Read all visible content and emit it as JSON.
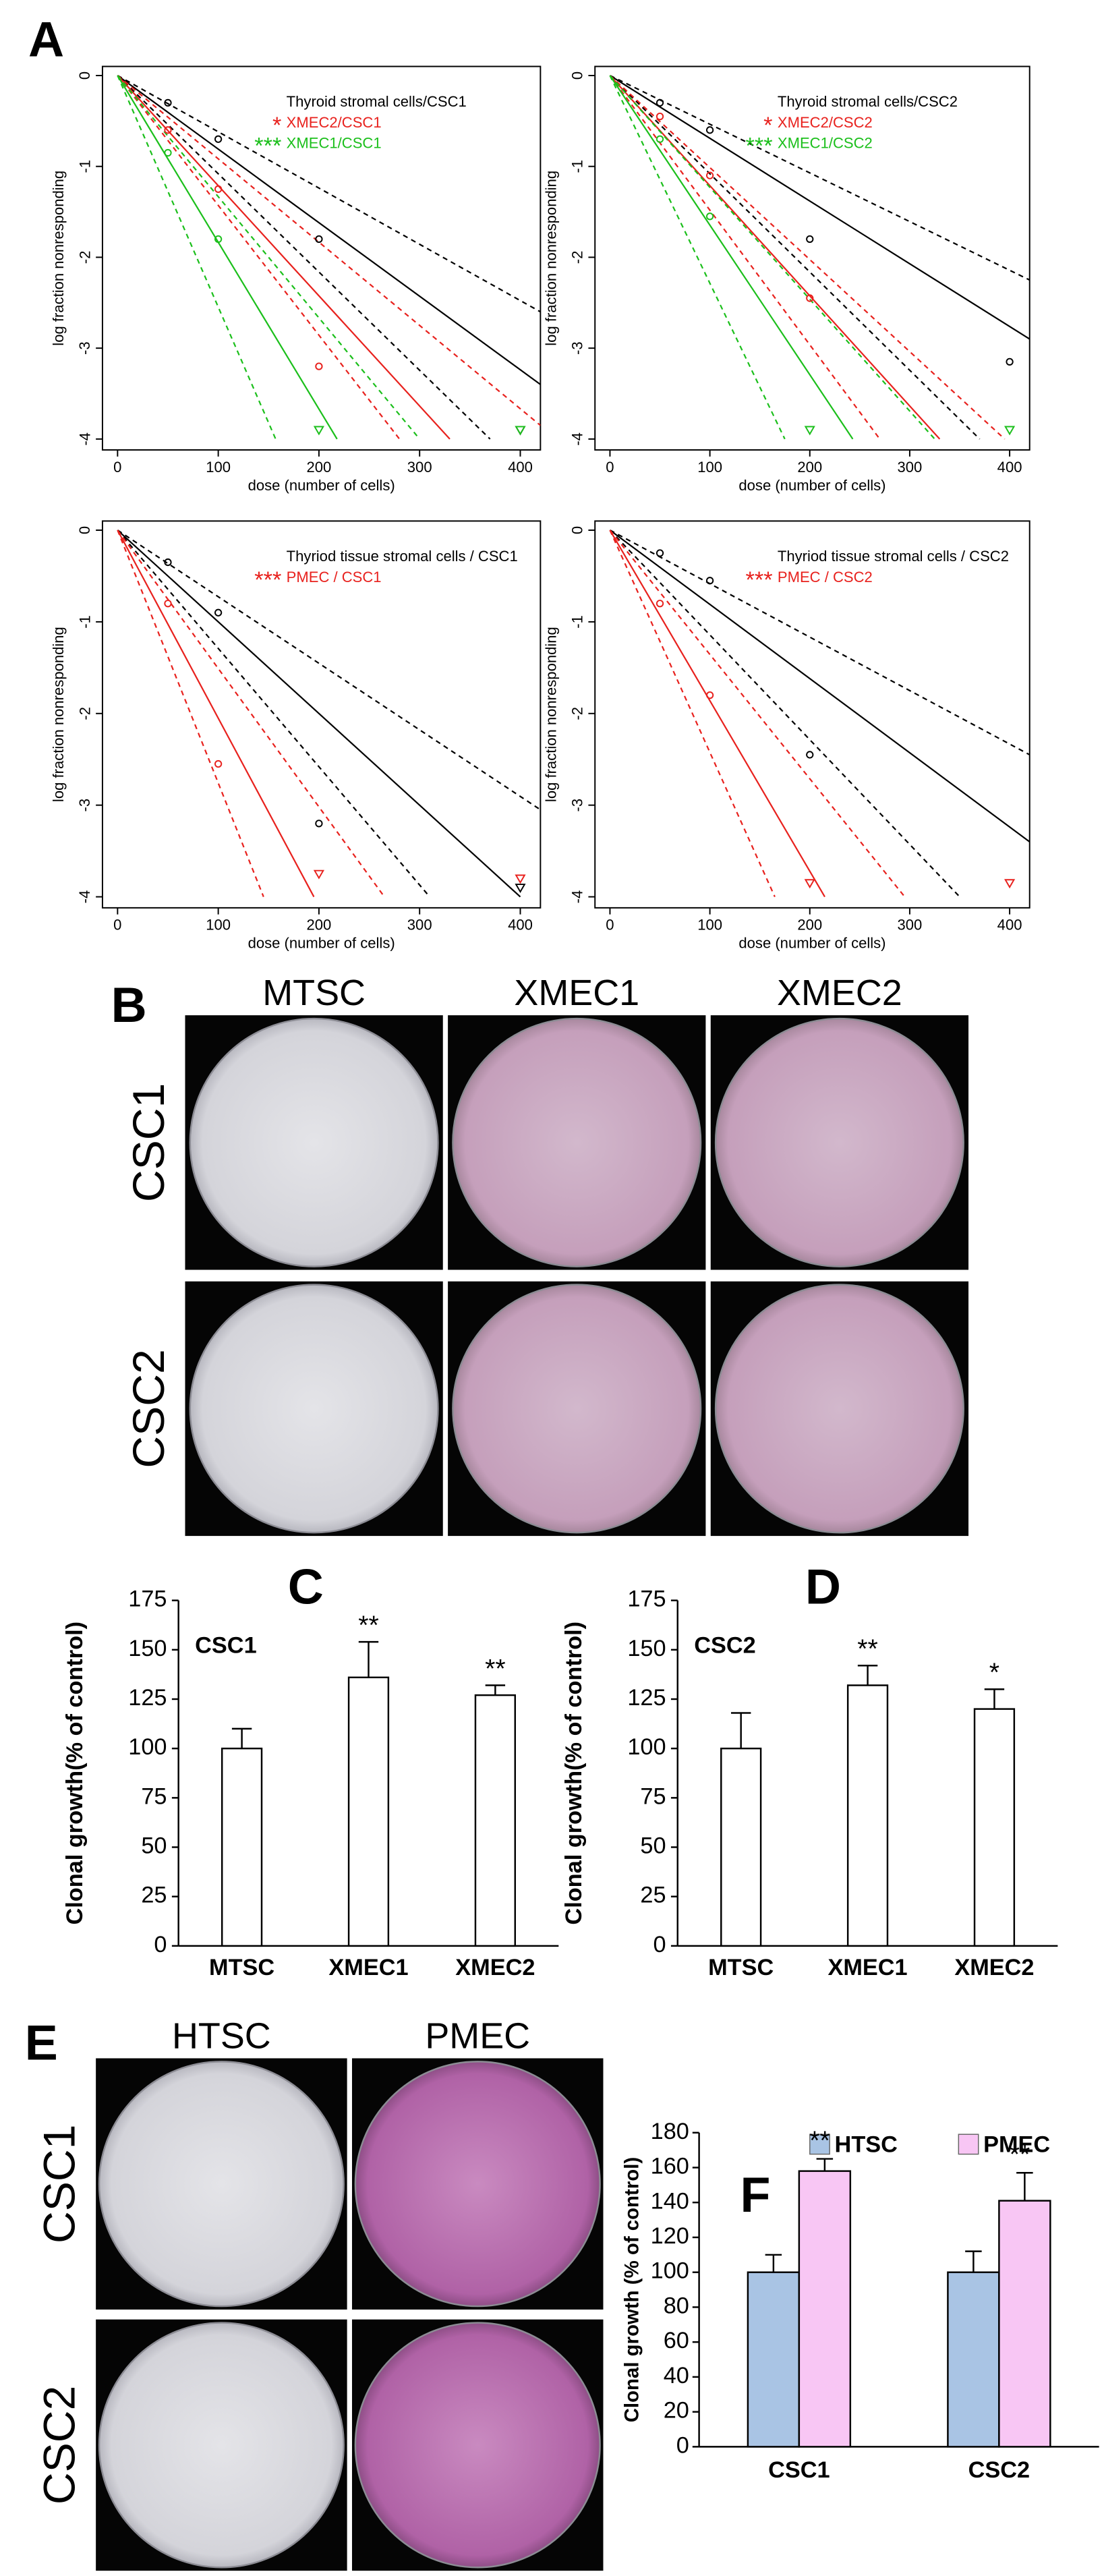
{
  "panel_labels": [
    "A",
    "B",
    "C",
    "D",
    "E",
    "F"
  ],
  "images": [
    {
      "columns": [
        "MTSC",
        "XMEC1",
        "XMEC2"
      ],
      "rows": [
        "CSC1",
        "CSC2"
      ]
    },
    {
      "columns": [
        "HTSC",
        "PMEC"
      ],
      "rows": [
        "CSC1",
        "CSC2"
      ]
    }
  ],
  "chart_data": [
    {
      "type": "lda",
      "xlabel": "dose (number of cells)",
      "ylabel": "log fraction nonresponding",
      "xlim": [
        -15,
        420
      ],
      "ylim": [
        -4.12,
        0.1
      ],
      "xticks": [
        0,
        100,
        200,
        300,
        400
      ],
      "yticks": [
        0,
        -1,
        -2,
        -3,
        -4
      ],
      "annotations": [
        {
          "text": "Thyroid stromal cells/CSC1",
          "color": "#000000"
        },
        {
          "stars": "*",
          "text": "XMEC2/CSC1",
          "color": "#e8211d"
        },
        {
          "stars": "***",
          "text": "XMEC1/CSC1",
          "color": "#1bbf1b"
        }
      ],
      "lines": [
        {
          "color": "#000000",
          "dashed": false,
          "x": [
            0,
            420
          ],
          "values": [
            0,
            -3.4
          ]
        },
        {
          "color": "#000000",
          "dashed": true,
          "x": [
            0,
            420
          ],
          "values": [
            0,
            -2.6
          ]
        },
        {
          "color": "#000000",
          "dashed": true,
          "x": [
            0,
            370
          ],
          "values": [
            0,
            -4
          ]
        },
        {
          "color": "#e8211d",
          "dashed": false,
          "x": [
            0,
            330
          ],
          "values": [
            0,
            -4
          ]
        },
        {
          "color": "#e8211d",
          "dashed": true,
          "x": [
            0,
            280
          ],
          "values": [
            0,
            -4
          ]
        },
        {
          "color": "#e8211d",
          "dashed": true,
          "x": [
            0,
            420
          ],
          "values": [
            0,
            -3.85
          ]
        },
        {
          "color": "#1bbf1b",
          "dashed": false,
          "x": [
            0,
            218
          ],
          "values": [
            0,
            -4
          ]
        },
        {
          "color": "#1bbf1b",
          "dashed": true,
          "x": [
            0,
            157
          ],
          "values": [
            0,
            -4
          ]
        },
        {
          "color": "#1bbf1b",
          "dashed": true,
          "x": [
            0,
            300
          ],
          "values": [
            0,
            -4
          ]
        }
      ],
      "points": [
        {
          "color": "#000000",
          "marker": "circle",
          "x": [
            50,
            100,
            200
          ],
          "values": [
            -0.3,
            -0.7,
            -1.8
          ]
        },
        {
          "color": "#000000",
          "marker": "triangle",
          "x": [
            400
          ],
          "values": [
            -3.9
          ]
        },
        {
          "color": "#e8211d",
          "marker": "circle",
          "x": [
            50,
            100,
            200
          ],
          "values": [
            -0.6,
            -1.25,
            -3.2
          ]
        },
        {
          "color": "#1bbf1b",
          "marker": "circle",
          "x": [
            50,
            100
          ],
          "values": [
            -0.85,
            -1.8
          ]
        },
        {
          "color": "#1bbf1b",
          "marker": "triangle",
          "x": [
            200,
            400
          ],
          "values": [
            -3.9,
            -3.9
          ]
        }
      ]
    },
    {
      "type": "lda",
      "xlabel": "dose (number of cells)",
      "ylabel": "log fraction nonresponding",
      "xlim": [
        -15,
        420
      ],
      "ylim": [
        -4.12,
        0.1
      ],
      "xticks": [
        0,
        100,
        200,
        300,
        400
      ],
      "yticks": [
        0,
        -1,
        -2,
        -3,
        -4
      ],
      "annotations": [
        {
          "text": "Thyroid stromal cells/CSC2",
          "color": "#000000"
        },
        {
          "stars": "*",
          "text": "XMEC2/CSC2",
          "color": "#e8211d"
        },
        {
          "stars": "***",
          "text": "XMEC1/CSC2",
          "color": "#1bbf1b"
        }
      ],
      "lines": [
        {
          "color": "#000000",
          "dashed": false,
          "x": [
            0,
            420
          ],
          "values": [
            0,
            -2.9
          ]
        },
        {
          "color": "#000000",
          "dashed": true,
          "x": [
            0,
            420
          ],
          "values": [
            0,
            -2.25
          ]
        },
        {
          "color": "#000000",
          "dashed": true,
          "x": [
            0,
            370
          ],
          "values": [
            0,
            -4
          ]
        },
        {
          "color": "#e8211d",
          "dashed": false,
          "x": [
            0,
            330
          ],
          "values": [
            0,
            -4
          ]
        },
        {
          "color": "#e8211d",
          "dashed": true,
          "x": [
            0,
            270
          ],
          "values": [
            0,
            -4
          ]
        },
        {
          "color": "#e8211d",
          "dashed": true,
          "x": [
            0,
            395
          ],
          "values": [
            0,
            -4
          ]
        },
        {
          "color": "#1bbf1b",
          "dashed": false,
          "x": [
            0,
            243
          ],
          "values": [
            0,
            -4
          ]
        },
        {
          "color": "#1bbf1b",
          "dashed": true,
          "x": [
            0,
            175
          ],
          "values": [
            0,
            -4
          ]
        },
        {
          "color": "#1bbf1b",
          "dashed": true,
          "x": [
            0,
            325
          ],
          "values": [
            0,
            -4
          ]
        }
      ],
      "points": [
        {
          "color": "#000000",
          "marker": "circle",
          "x": [
            50,
            100,
            200,
            400
          ],
          "values": [
            -0.3,
            -0.6,
            -1.8,
            -3.15
          ]
        },
        {
          "color": "#e8211d",
          "marker": "circle",
          "x": [
            50,
            100,
            200
          ],
          "values": [
            -0.45,
            -1.1,
            -2.45
          ]
        },
        {
          "color": "#1bbf1b",
          "marker": "circle",
          "x": [
            50,
            100
          ],
          "values": [
            -0.7,
            -1.55
          ]
        },
        {
          "color": "#1bbf1b",
          "marker": "triangle",
          "x": [
            200,
            400
          ],
          "values": [
            -3.9,
            -3.9
          ]
        }
      ]
    },
    {
      "type": "lda",
      "xlabel": "dose (number of cells)",
      "ylabel": "log fraction nonresponding",
      "xlim": [
        -15,
        420
      ],
      "ylim": [
        -4.12,
        0.1
      ],
      "xticks": [
        0,
        100,
        200,
        300,
        400
      ],
      "yticks": [
        0,
        -1,
        -2,
        -3,
        -4
      ],
      "annotations": [
        {
          "text": "Thyriod tissue stromal cells / CSC1",
          "color": "#000000"
        },
        {
          "stars": "***",
          "text": "PMEC / CSC1",
          "color": "#e8211d"
        }
      ],
      "lines": [
        {
          "color": "#000000",
          "dashed": false,
          "x": [
            0,
            400
          ],
          "values": [
            0,
            -4
          ]
        },
        {
          "color": "#000000",
          "dashed": true,
          "x": [
            0,
            420
          ],
          "values": [
            0,
            -3.05
          ]
        },
        {
          "color": "#000000",
          "dashed": true,
          "x": [
            0,
            310
          ],
          "values": [
            0,
            -4
          ]
        },
        {
          "color": "#e8211d",
          "dashed": false,
          "x": [
            0,
            195
          ],
          "values": [
            0,
            -4
          ]
        },
        {
          "color": "#e8211d",
          "dashed": true,
          "x": [
            0,
            145
          ],
          "values": [
            0,
            -4
          ]
        },
        {
          "color": "#e8211d",
          "dashed": true,
          "x": [
            0,
            265
          ],
          "values": [
            0,
            -4
          ]
        }
      ],
      "points": [
        {
          "color": "#000000",
          "marker": "circle",
          "x": [
            50,
            100,
            200
          ],
          "values": [
            -0.35,
            -0.9,
            -3.2
          ]
        },
        {
          "color": "#000000",
          "marker": "triangle",
          "x": [
            400
          ],
          "values": [
            -3.9
          ]
        },
        {
          "color": "#e8211d",
          "marker": "circle",
          "x": [
            50,
            100
          ],
          "values": [
            -0.8,
            -2.55
          ]
        },
        {
          "color": "#e8211d",
          "marker": "triangle",
          "x": [
            200,
            400
          ],
          "values": [
            -3.75,
            -3.8
          ]
        }
      ]
    },
    {
      "type": "lda",
      "xlabel": "dose (number of cells)",
      "ylabel": "log fraction nonresponding",
      "xlim": [
        -15,
        420
      ],
      "ylim": [
        -4.12,
        0.1
      ],
      "xticks": [
        0,
        100,
        200,
        300,
        400
      ],
      "yticks": [
        0,
        -1,
        -2,
        -3,
        -4
      ],
      "annotations": [
        {
          "text": "Thyriod tissue stromal cells / CSC2",
          "color": "#000000"
        },
        {
          "stars": "***",
          "text": "PMEC / CSC2",
          "color": "#e8211d"
        }
      ],
      "lines": [
        {
          "color": "#000000",
          "dashed": false,
          "x": [
            0,
            420
          ],
          "values": [
            0,
            -3.4
          ]
        },
        {
          "color": "#000000",
          "dashed": true,
          "x": [
            0,
            420
          ],
          "values": [
            0,
            -2.45
          ]
        },
        {
          "color": "#000000",
          "dashed": true,
          "x": [
            0,
            350
          ],
          "values": [
            0,
            -4
          ]
        },
        {
          "color": "#e8211d",
          "dashed": false,
          "x": [
            0,
            215
          ],
          "values": [
            0,
            -4
          ]
        },
        {
          "color": "#e8211d",
          "dashed": true,
          "x": [
            0,
            165
          ],
          "values": [
            0,
            -4
          ]
        },
        {
          "color": "#e8211d",
          "dashed": true,
          "x": [
            0,
            295
          ],
          "values": [
            0,
            -4
          ]
        }
      ],
      "points": [
        {
          "color": "#000000",
          "marker": "circle",
          "x": [
            50,
            100,
            200
          ],
          "values": [
            -0.25,
            -0.55,
            -2.45
          ]
        },
        {
          "color": "#e8211d",
          "marker": "circle",
          "x": [
            50,
            100
          ],
          "values": [
            -0.8,
            -1.8
          ]
        },
        {
          "color": "#e8211d",
          "marker": "triangle",
          "x": [
            200,
            400
          ],
          "values": [
            -3.85,
            -3.85
          ]
        }
      ]
    },
    {
      "type": "bar",
      "ylabel": "Clonal growth(% of control)",
      "label": "CSC1",
      "categories": [
        "MTSC",
        "XMEC1",
        "XMEC2"
      ],
      "values": [
        100,
        136,
        127
      ],
      "errors": [
        10,
        18,
        5
      ],
      "significance": [
        null,
        "**",
        "**"
      ],
      "color": "#ffffff",
      "ylim": [
        0,
        175
      ],
      "yticks": [
        0,
        25,
        50,
        75,
        100,
        125,
        150,
        175
      ]
    },
    {
      "type": "bar",
      "ylabel": "Clonal growth(% of control)",
      "label": "CSC2",
      "categories": [
        "MTSC",
        "XMEC1",
        "XMEC2"
      ],
      "values": [
        100,
        132,
        120
      ],
      "errors": [
        18,
        10,
        10
      ],
      "significance": [
        null,
        "**",
        "*"
      ],
      "color": "#ffffff",
      "ylim": [
        0,
        175
      ],
      "yticks": [
        0,
        25,
        50,
        75,
        100,
        125,
        150,
        175
      ]
    },
    {
      "type": "grouped_bar",
      "ylabel": "Clonal growth (% of control)",
      "categories": [
        "CSC1",
        "CSC2"
      ],
      "series": [
        {
          "name": "HTSC",
          "color": "#a9c4e4",
          "values": [
            100,
            100
          ],
          "errors": [
            10,
            12
          ]
        },
        {
          "name": "PMEC",
          "color": "#f8c6f4",
          "values": [
            158,
            141
          ],
          "errors": [
            7,
            16
          ],
          "significance": [
            "**",
            "**"
          ]
        }
      ],
      "ylim": [
        0,
        180
      ],
      "yticks": [
        0,
        20,
        40,
        60,
        80,
        100,
        120,
        140,
        160,
        180
      ]
    }
  ]
}
